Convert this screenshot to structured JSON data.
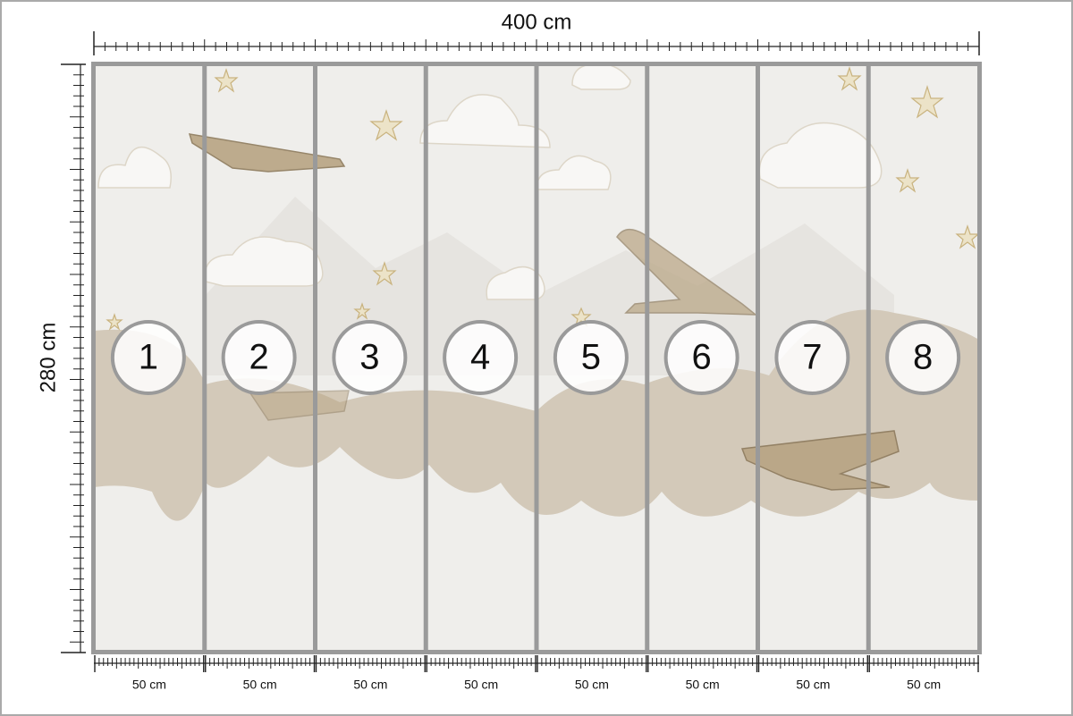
{
  "dimensions": {
    "width": "400 cm",
    "height": "280 cm"
  },
  "panels": [
    {
      "number": "1",
      "width": "50 cm"
    },
    {
      "number": "2",
      "width": "50 cm"
    },
    {
      "number": "3",
      "width": "50 cm"
    },
    {
      "number": "4",
      "width": "50 cm"
    },
    {
      "number": "5",
      "width": "50 cm"
    },
    {
      "number": "6",
      "width": "50 cm"
    },
    {
      "number": "7",
      "width": "50 cm"
    },
    {
      "number": "8",
      "width": "50 cm"
    }
  ]
}
